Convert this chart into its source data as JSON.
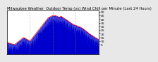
{
  "title": "Milwaukee Weather  Outdoor Temp (vs) Wind Chill per Minute (Last 24 Hours)",
  "background_color": "#e8e8e8",
  "plot_background": "#ffffff",
  "blue_color": "#0000cc",
  "red_color": "#ff0000",
  "grid_color": "#888888",
  "n_points": 1440,
  "ylim_min": -8,
  "ylim_max": 52,
  "ytick_labels": [
    "5",
    "10",
    "15",
    "20",
    "25",
    "30",
    "35",
    "40",
    "45",
    "50"
  ],
  "ytick_values": [
    5,
    10,
    15,
    20,
    25,
    30,
    35,
    40,
    45,
    50
  ],
  "title_fontsize": 3.8,
  "tick_fontsize": 3.2,
  "n_xticks": 24
}
